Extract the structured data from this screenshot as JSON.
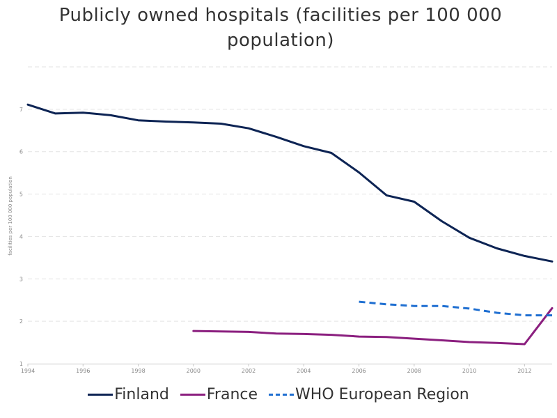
{
  "chart_data": {
    "type": "line",
    "title": "Publicly owned hospitals (facilities per 100 000 population)",
    "xlabel": "",
    "ylabel": "facilities per 100 000 population",
    "xlim": [
      1994,
      2013
    ],
    "ylim": [
      1,
      8
    ],
    "x_ticks": [
      "1994",
      "1996",
      "1998",
      "2000",
      "2002",
      "2004",
      "2006",
      "2008",
      "2010",
      "2012"
    ],
    "y_ticks": [
      "1",
      "2",
      "3",
      "4",
      "5",
      "6",
      "7"
    ],
    "grid": true,
    "legend_position": "bottom",
    "series": [
      {
        "name": "Finland",
        "color": "#0d2454",
        "style": "solid",
        "x": [
          1994,
          1995,
          1996,
          1997,
          1998,
          1999,
          2000,
          2001,
          2002,
          2003,
          2004,
          2005,
          2006,
          2007,
          2008,
          2009,
          2010,
          2011,
          2012,
          2013
        ],
        "values": [
          7.11,
          6.9,
          6.92,
          6.86,
          6.74,
          6.71,
          6.69,
          6.66,
          6.55,
          6.35,
          6.13,
          5.97,
          5.51,
          4.97,
          4.82,
          4.36,
          3.97,
          3.72,
          3.54,
          3.41
        ]
      },
      {
        "name": "France",
        "color": "#8b1f7f",
        "style": "solid",
        "x": [
          2000,
          2001,
          2002,
          2003,
          2004,
          2005,
          2006,
          2007,
          2008,
          2009,
          2010,
          2011,
          2012,
          2013
        ],
        "values": [
          1.77,
          1.76,
          1.75,
          1.71,
          1.7,
          1.68,
          1.64,
          1.63,
          1.59,
          1.55,
          1.51,
          1.49,
          1.46,
          2.31
        ]
      },
      {
        "name": "WHO European Region",
        "color": "#1f6fd1",
        "style": "dashed",
        "x": [
          2006,
          2007,
          2008,
          2009,
          2010,
          2011,
          2012,
          2013
        ],
        "values": [
          2.46,
          2.4,
          2.36,
          2.36,
          2.3,
          2.2,
          2.14,
          2.14
        ]
      }
    ]
  }
}
